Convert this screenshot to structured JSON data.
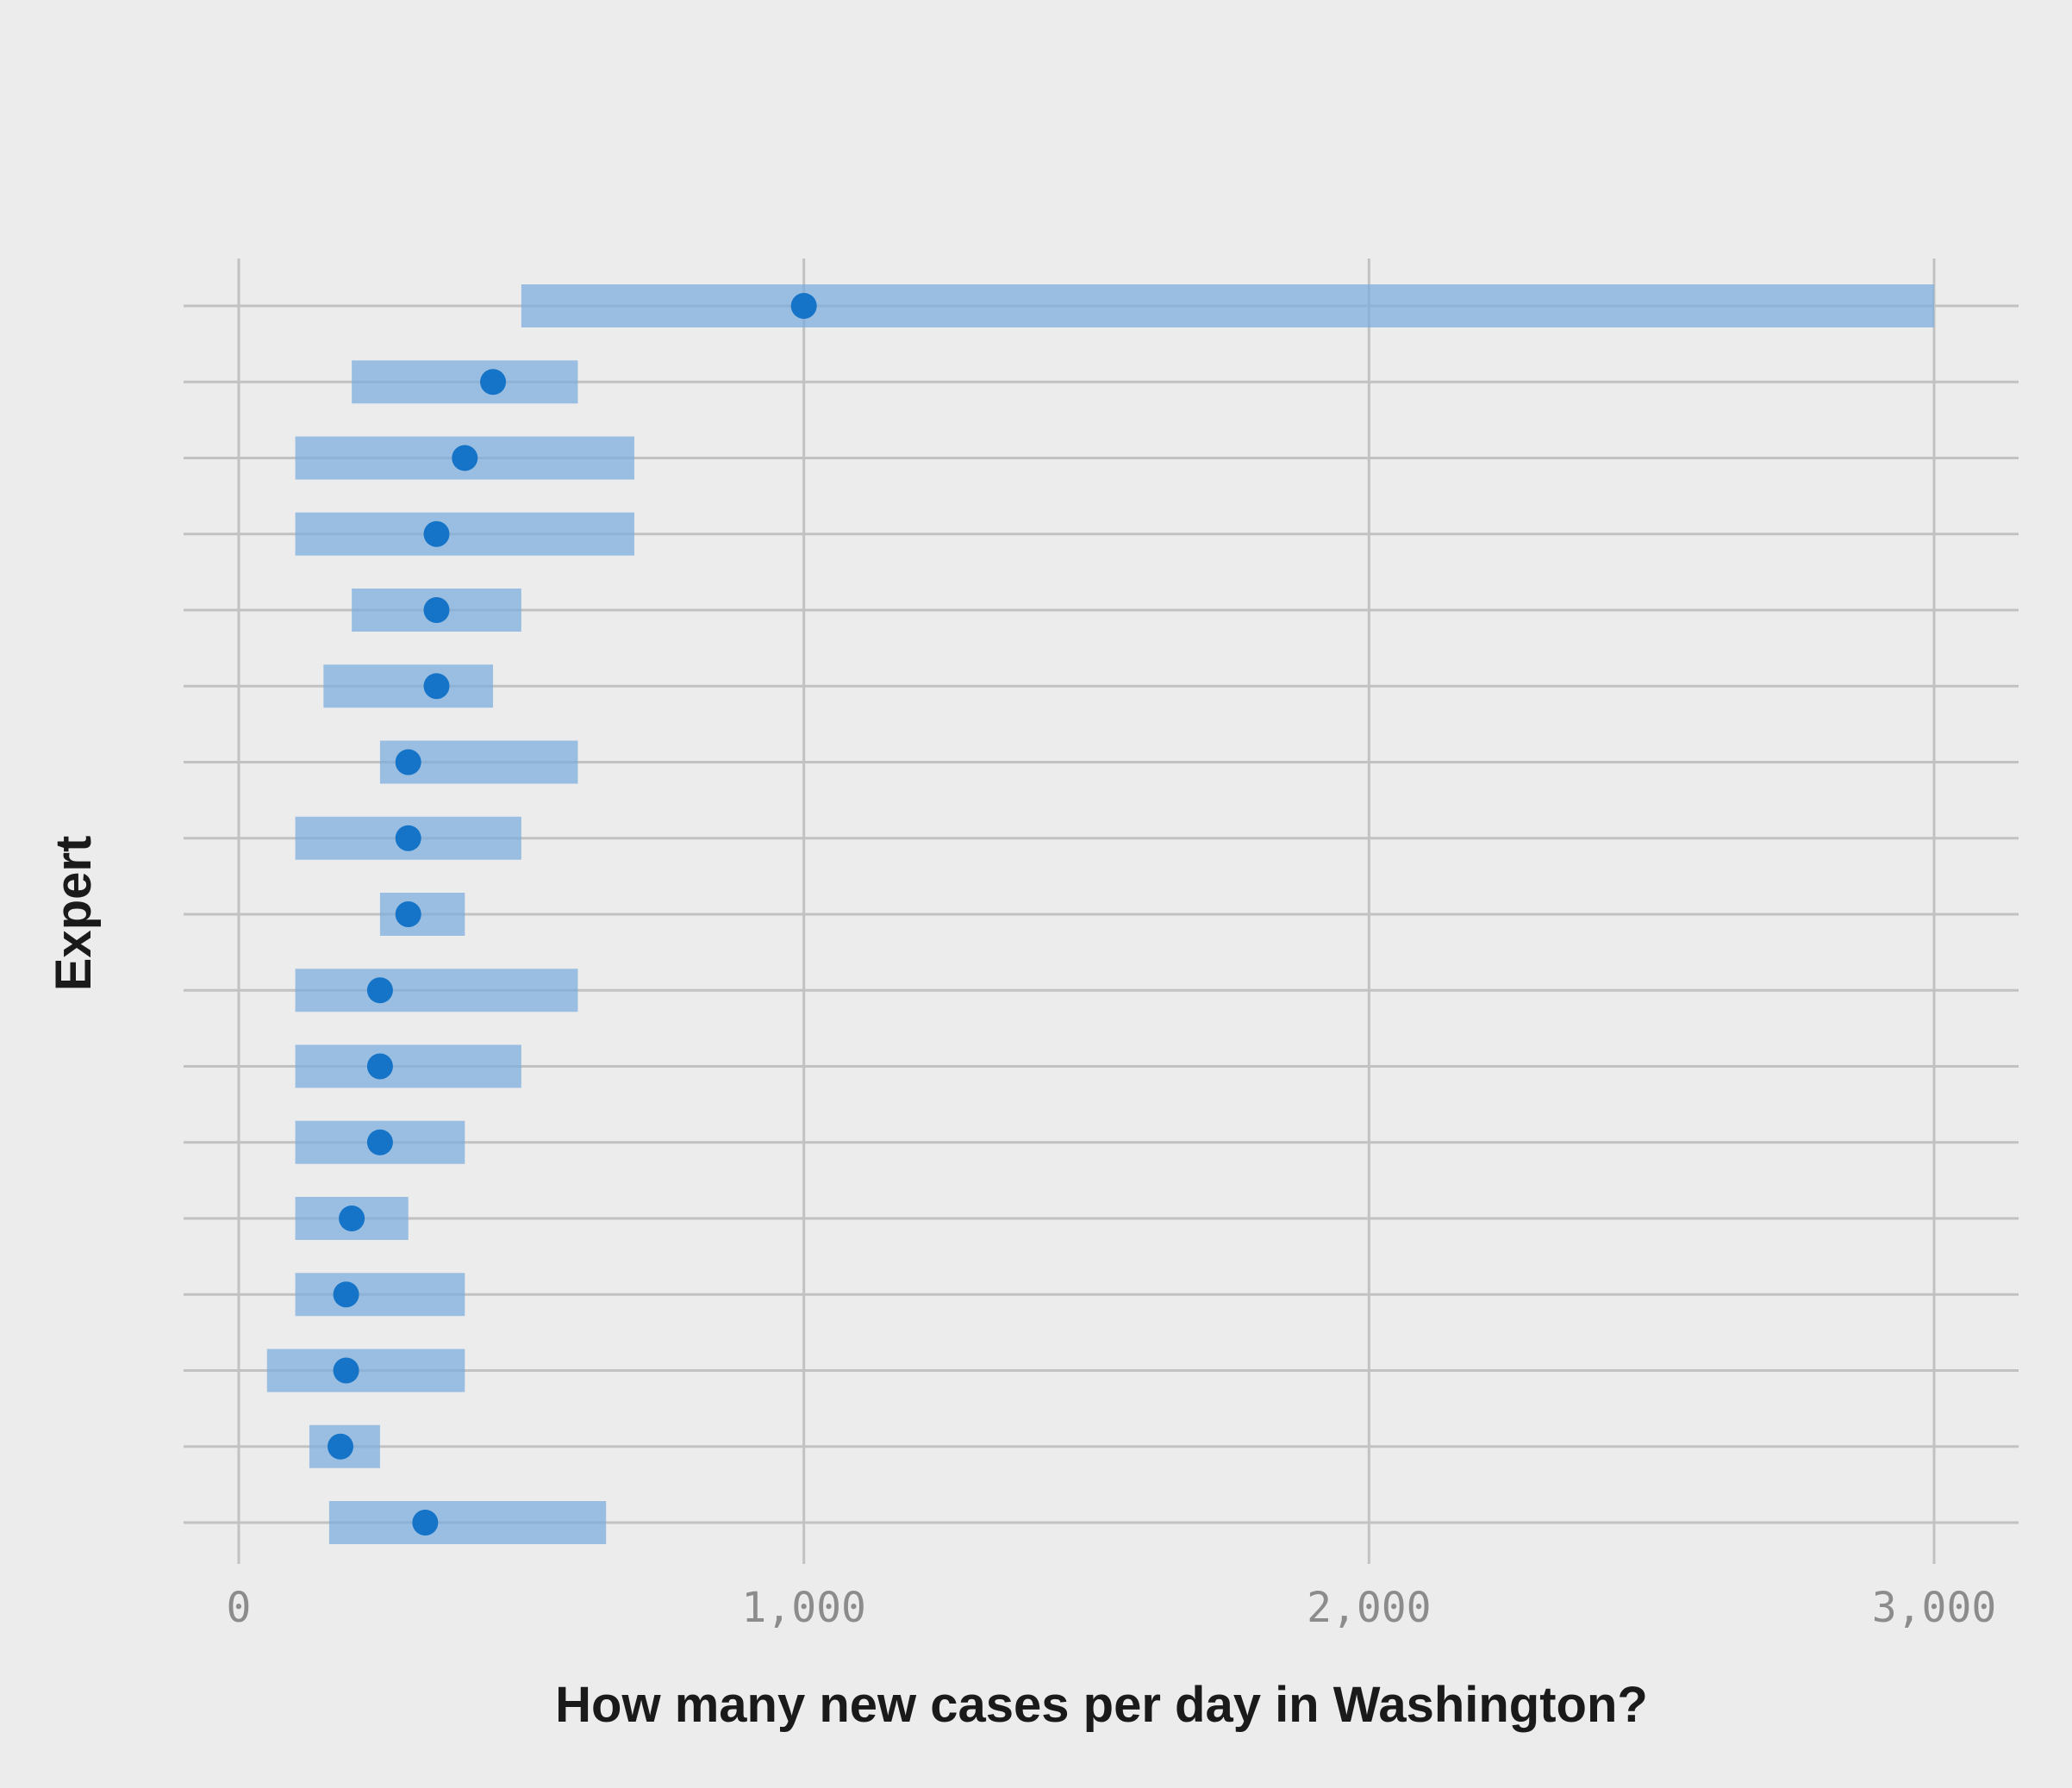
{
  "chart_data": {
    "type": "interval_dot",
    "title": "",
    "xlabel": "How many new cases per day in Washington?",
    "ylabel": "Expert",
    "xlim": [
      0,
      3000
    ],
    "x_ticks": [
      0,
      1000,
      2000,
      3000
    ],
    "x_tick_labels": [
      "0",
      "1,000",
      "2,000",
      "3,000"
    ],
    "grid": true,
    "colors": {
      "interval": "#7aacdc",
      "point": "#1574c7",
      "grid": "#c2c2c2",
      "background": "#ececec"
    },
    "experts": [
      {
        "low": 500,
        "high": 3000,
        "estimate": 1000
      },
      {
        "low": 200,
        "high": 600,
        "estimate": 450
      },
      {
        "low": 100,
        "high": 700,
        "estimate": 400
      },
      {
        "low": 100,
        "high": 700,
        "estimate": 350
      },
      {
        "low": 200,
        "high": 500,
        "estimate": 350
      },
      {
        "low": 150,
        "high": 450,
        "estimate": 350
      },
      {
        "low": 250,
        "high": 600,
        "estimate": 300
      },
      {
        "low": 100,
        "high": 500,
        "estimate": 300
      },
      {
        "low": 250,
        "high": 400,
        "estimate": 300
      },
      {
        "low": 100,
        "high": 600,
        "estimate": 250
      },
      {
        "low": 100,
        "high": 500,
        "estimate": 250
      },
      {
        "low": 100,
        "high": 400,
        "estimate": 250
      },
      {
        "low": 100,
        "high": 300,
        "estimate": 200
      },
      {
        "low": 100,
        "high": 400,
        "estimate": 190
      },
      {
        "low": 50,
        "high": 400,
        "estimate": 190
      },
      {
        "low": 125,
        "high": 250,
        "estimate": 180
      },
      {
        "low": 160,
        "high": 650,
        "estimate": 330
      }
    ]
  }
}
